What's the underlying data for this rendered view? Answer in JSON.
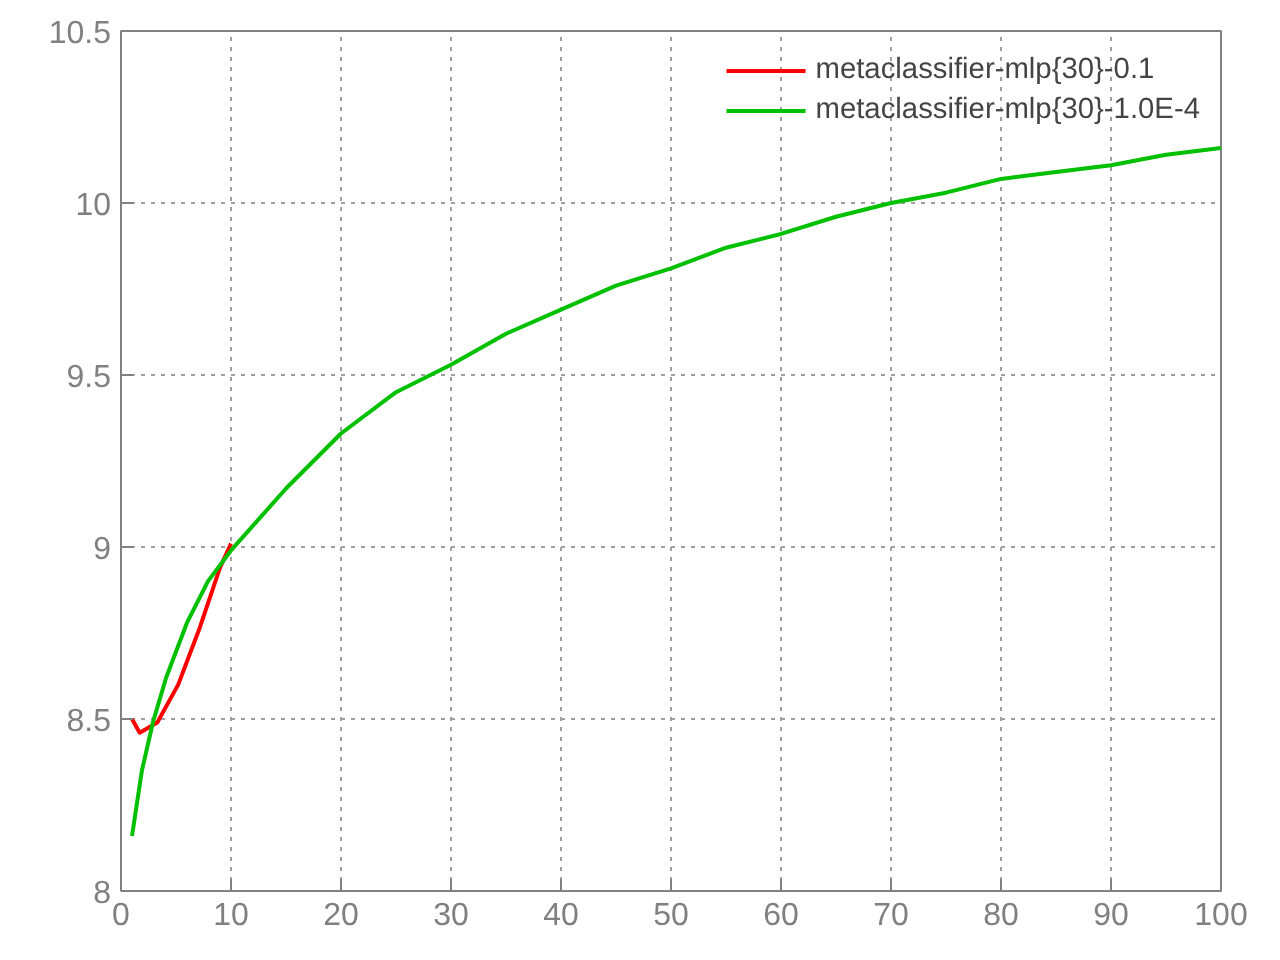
{
  "chart_data": {
    "type": "line",
    "xlim": [
      0,
      100
    ],
    "ylim": [
      8,
      10.5
    ],
    "xticks": [
      0,
      10,
      20,
      30,
      40,
      50,
      60,
      70,
      80,
      90,
      100
    ],
    "yticks": [
      8,
      8.5,
      9,
      9.5,
      10,
      10.5
    ],
    "grid": true,
    "legend": "top right",
    "line_style": "solid",
    "series": [
      {
        "name": "metaclassifier-mlp{30}-0.1",
        "color": "#ff0000",
        "x": [
          1,
          1.7,
          3.3,
          5.2,
          7.1,
          9,
          10
        ],
        "values": [
          8.5,
          8.46,
          8.49,
          8.6,
          8.76,
          8.94,
          9.01
        ]
      },
      {
        "name": "metaclassifier-mlp{30}-1.0E-4",
        "color": "#00c000",
        "x": [
          1,
          1.9,
          2.9,
          4.1,
          6,
          7.9,
          10,
          15,
          20,
          25,
          30,
          35,
          40,
          45,
          50,
          55,
          60,
          65,
          70,
          75,
          80,
          85,
          90,
          95,
          100
        ],
        "values": [
          8.16,
          8.35,
          8.49,
          8.62,
          8.78,
          8.9,
          8.99,
          9.17,
          9.33,
          9.45,
          9.53,
          9.62,
          9.69,
          9.76,
          9.81,
          9.87,
          9.91,
          9.96,
          10.0,
          10.03,
          10.07,
          10.09,
          10.11,
          10.14,
          10.16
        ]
      }
    ]
  }
}
